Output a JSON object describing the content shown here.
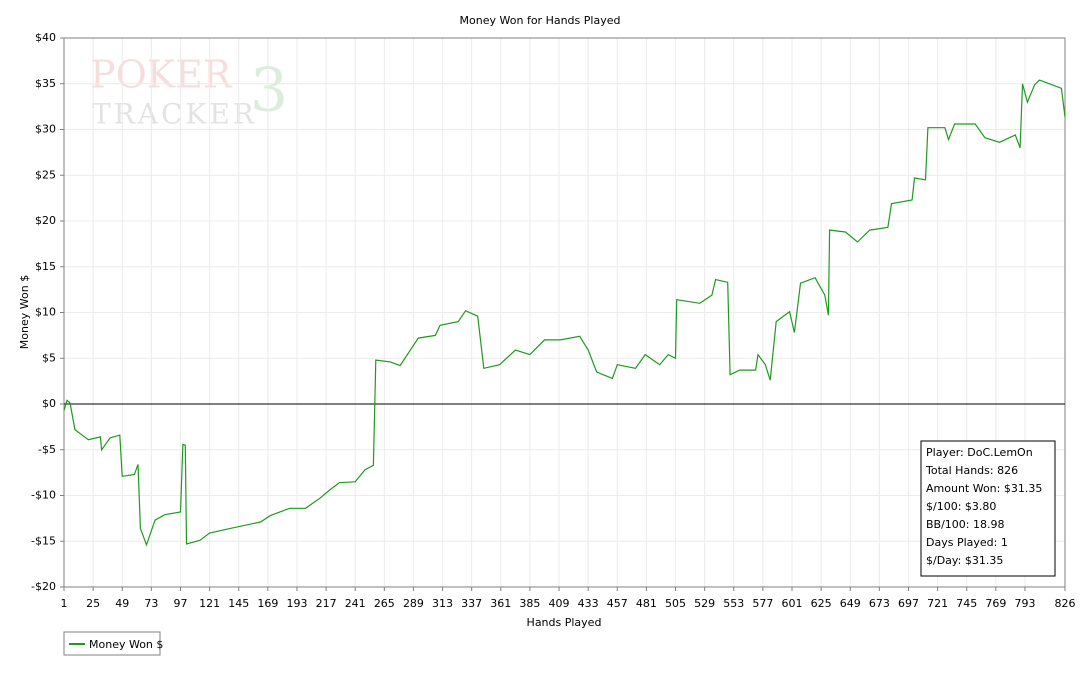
{
  "chart_data": {
    "type": "line",
    "title": "Money Won for Hands Played",
    "xlabel": "Hands Played",
    "ylabel": "Money Won $",
    "watermark": [
      "POKER",
      "TRACKER",
      "3"
    ],
    "x": [
      1,
      3.5,
      6,
      10,
      14,
      21,
      31,
      32,
      39,
      47,
      49,
      59,
      62,
      64,
      69,
      76,
      84,
      97,
      99,
      101,
      102,
      113,
      121,
      138,
      163,
      171,
      187,
      200,
      212,
      220,
      228,
      241,
      249,
      256,
      258,
      270,
      278,
      293,
      307,
      311,
      326,
      332,
      342,
      347,
      360,
      373,
      385,
      397,
      410,
      426,
      433,
      440,
      453,
      457,
      472,
      480,
      492,
      499,
      505,
      506,
      525,
      535,
      538,
      548,
      550,
      558,
      571,
      573,
      579,
      583,
      588,
      599,
      603,
      608,
      620,
      628,
      631,
      632,
      645,
      655,
      665,
      680,
      683,
      700,
      702,
      711,
      713,
      727,
      730,
      735,
      752,
      760,
      772,
      785,
      789,
      791,
      795,
      801,
      805,
      823,
      826
    ],
    "series": [
      {
        "name": "Money Won $",
        "color": "#1f9a1f",
        "values": [
          -0.7,
          0.4,
          0.1,
          -2.8,
          -3.2,
          -3.9,
          -3.6,
          -5,
          -3.7,
          -3.4,
          -7.9,
          -7.7,
          -6.6,
          -13.6,
          -15.4,
          -12.7,
          -12.1,
          -11.8,
          -4.4,
          -4.5,
          -15.3,
          -14.9,
          -14.1,
          -13.6,
          -12.9,
          -12.2,
          -11.4,
          -11.4,
          -10.3,
          -9.4,
          -8.6,
          -8.5,
          -7.2,
          -6.7,
          4.8,
          4.6,
          4.2,
          7.2,
          7.5,
          8.6,
          9.0,
          10.2,
          9.6,
          3.9,
          4.3,
          5.9,
          5.4,
          7.0,
          7.0,
          7.4,
          5.9,
          3.5,
          2.8,
          4.3,
          3.9,
          5.4,
          4.3,
          5.4,
          5.0,
          11.4,
          11.0,
          11.9,
          13.6,
          13.3,
          3.2,
          3.7,
          3.7,
          5.4,
          4.3,
          2.6,
          9.0,
          10.1,
          7.8,
          13.2,
          13.8,
          11.9,
          9.7,
          19.0,
          18.8,
          17.7,
          19.0,
          19.3,
          21.9,
          22.3,
          24.7,
          24.5,
          30.2,
          30.2,
          28.9,
          30.6,
          30.6,
          29.1,
          28.6,
          29.4,
          28.0,
          35.0,
          33.0,
          34.9,
          35.4,
          34.5,
          31.35
        ]
      }
    ],
    "xlim": [
      1,
      826
    ],
    "xticks": [
      1,
      25,
      49,
      73,
      97,
      121,
      145,
      169,
      193,
      217,
      241,
      265,
      289,
      313,
      337,
      361,
      385,
      409,
      433,
      457,
      481,
      505,
      529,
      553,
      577,
      601,
      625,
      649,
      673,
      697,
      721,
      745,
      769,
      793,
      826
    ],
    "ylim": [
      -20,
      40
    ],
    "yticks": [
      {
        "value": -20,
        "label": "-$20"
      },
      {
        "value": -15,
        "label": "-$15"
      },
      {
        "value": -10,
        "label": "-$10"
      },
      {
        "value": -5,
        "label": "-$5"
      },
      {
        "value": 0,
        "label": "$0"
      },
      {
        "value": 5,
        "label": "$5"
      },
      {
        "value": 10,
        "label": "$10"
      },
      {
        "value": 15,
        "label": "$15"
      },
      {
        "value": 20,
        "label": "$20"
      },
      {
        "value": 25,
        "label": "$25"
      },
      {
        "value": 30,
        "label": "$30"
      },
      {
        "value": 35,
        "label": "$35"
      },
      {
        "value": 40,
        "label": "$40"
      }
    ],
    "grid": true,
    "stats": [
      "Player: DoC.LemOn",
      "Total Hands: 826",
      "Amount Won: $31.35",
      "$/100: $3.80",
      "BB/100: 18.98",
      "Days Played: 1",
      "$/Day: $31.35"
    ]
  }
}
